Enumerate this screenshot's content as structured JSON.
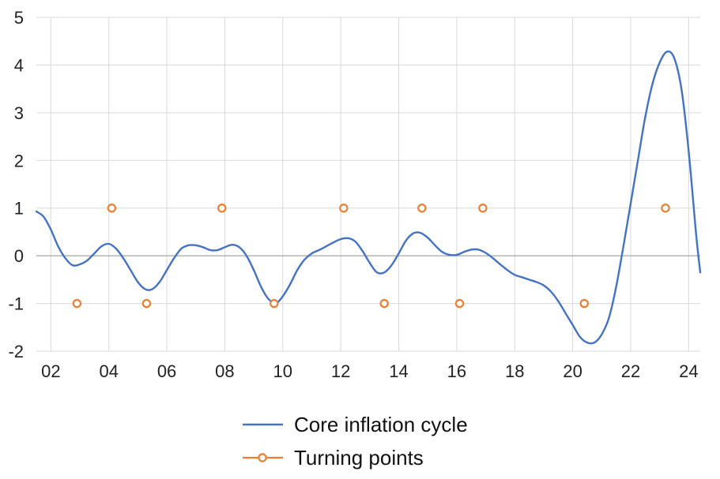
{
  "chart_data": {
    "type": "line",
    "xlim": [
      2001.5,
      2024.4
    ],
    "ylim": [
      -2,
      5
    ],
    "grid": true,
    "x_ticks": [
      2002,
      2004,
      2006,
      2008,
      2010,
      2012,
      2014,
      2016,
      2018,
      2020,
      2022,
      2024
    ],
    "x_tick_labels": [
      "02",
      "04",
      "06",
      "08",
      "10",
      "12",
      "14",
      "16",
      "18",
      "20",
      "22",
      "24"
    ],
    "y_ticks": [
      -2,
      -1,
      0,
      1,
      2,
      3,
      4,
      5
    ],
    "y_tick_labels": [
      "-2",
      "-1",
      "0",
      "1",
      "2",
      "3",
      "4",
      "5"
    ],
    "legend_position": "bottom",
    "series": [
      {
        "name": "Core inflation cycle",
        "kind": "line",
        "color": "#4472C4",
        "points": [
          [
            2001.5,
            0.93
          ],
          [
            2001.75,
            0.82
          ],
          [
            2002.0,
            0.55
          ],
          [
            2002.25,
            0.2
          ],
          [
            2002.5,
            -0.05
          ],
          [
            2002.75,
            -0.2
          ],
          [
            2003.0,
            -0.18
          ],
          [
            2003.25,
            -0.1
          ],
          [
            2003.5,
            0.05
          ],
          [
            2003.75,
            0.2
          ],
          [
            2004.0,
            0.25
          ],
          [
            2004.25,
            0.15
          ],
          [
            2004.5,
            -0.05
          ],
          [
            2004.75,
            -0.3
          ],
          [
            2005.0,
            -0.55
          ],
          [
            2005.25,
            -0.7
          ],
          [
            2005.5,
            -0.7
          ],
          [
            2005.75,
            -0.55
          ],
          [
            2006.0,
            -0.3
          ],
          [
            2006.25,
            -0.05
          ],
          [
            2006.5,
            0.15
          ],
          [
            2006.75,
            0.22
          ],
          [
            2007.0,
            0.22
          ],
          [
            2007.25,
            0.18
          ],
          [
            2007.5,
            0.12
          ],
          [
            2007.75,
            0.12
          ],
          [
            2008.0,
            0.18
          ],
          [
            2008.25,
            0.23
          ],
          [
            2008.5,
            0.18
          ],
          [
            2008.75,
            0.0
          ],
          [
            2009.0,
            -0.3
          ],
          [
            2009.25,
            -0.65
          ],
          [
            2009.5,
            -0.9
          ],
          [
            2009.75,
            -1.0
          ],
          [
            2010.0,
            -0.85
          ],
          [
            2010.25,
            -0.6
          ],
          [
            2010.5,
            -0.3
          ],
          [
            2010.75,
            -0.08
          ],
          [
            2011.0,
            0.05
          ],
          [
            2011.25,
            0.12
          ],
          [
            2011.5,
            0.2
          ],
          [
            2011.75,
            0.28
          ],
          [
            2012.0,
            0.35
          ],
          [
            2012.25,
            0.37
          ],
          [
            2012.5,
            0.3
          ],
          [
            2012.75,
            0.1
          ],
          [
            2013.0,
            -0.15
          ],
          [
            2013.25,
            -0.35
          ],
          [
            2013.5,
            -0.35
          ],
          [
            2013.75,
            -0.2
          ],
          [
            2014.0,
            0.05
          ],
          [
            2014.25,
            0.32
          ],
          [
            2014.5,
            0.47
          ],
          [
            2014.75,
            0.48
          ],
          [
            2015.0,
            0.38
          ],
          [
            2015.25,
            0.22
          ],
          [
            2015.5,
            0.08
          ],
          [
            2015.75,
            0.02
          ],
          [
            2016.0,
            0.02
          ],
          [
            2016.25,
            0.08
          ],
          [
            2016.5,
            0.13
          ],
          [
            2016.75,
            0.13
          ],
          [
            2017.0,
            0.06
          ],
          [
            2017.25,
            -0.05
          ],
          [
            2017.5,
            -0.18
          ],
          [
            2017.75,
            -0.3
          ],
          [
            2018.0,
            -0.4
          ],
          [
            2018.25,
            -0.45
          ],
          [
            2018.5,
            -0.5
          ],
          [
            2018.75,
            -0.55
          ],
          [
            2019.0,
            -0.62
          ],
          [
            2019.25,
            -0.75
          ],
          [
            2019.5,
            -0.95
          ],
          [
            2019.75,
            -1.2
          ],
          [
            2020.0,
            -1.45
          ],
          [
            2020.25,
            -1.7
          ],
          [
            2020.5,
            -1.82
          ],
          [
            2020.75,
            -1.82
          ],
          [
            2021.0,
            -1.65
          ],
          [
            2021.25,
            -1.3
          ],
          [
            2021.5,
            -0.65
          ],
          [
            2021.75,
            0.2
          ],
          [
            2022.0,
            1.1
          ],
          [
            2022.25,
            2.0
          ],
          [
            2022.5,
            2.9
          ],
          [
            2022.75,
            3.6
          ],
          [
            2023.0,
            4.05
          ],
          [
            2023.25,
            4.28
          ],
          [
            2023.5,
            4.15
          ],
          [
            2023.75,
            3.5
          ],
          [
            2024.0,
            2.2
          ],
          [
            2024.25,
            0.5
          ],
          [
            2024.4,
            -0.35
          ]
        ]
      },
      {
        "name": "Turning points",
        "kind": "markers",
        "color": "#ED7D31",
        "points": [
          [
            2002.9,
            -1
          ],
          [
            2004.1,
            1
          ],
          [
            2005.3,
            -1
          ],
          [
            2007.9,
            1
          ],
          [
            2009.7,
            -1
          ],
          [
            2012.1,
            1
          ],
          [
            2013.5,
            -1
          ],
          [
            2014.8,
            1
          ],
          [
            2016.1,
            -1
          ],
          [
            2016.9,
            1
          ],
          [
            2020.4,
            -1
          ],
          [
            2023.2,
            1
          ]
        ]
      }
    ]
  }
}
